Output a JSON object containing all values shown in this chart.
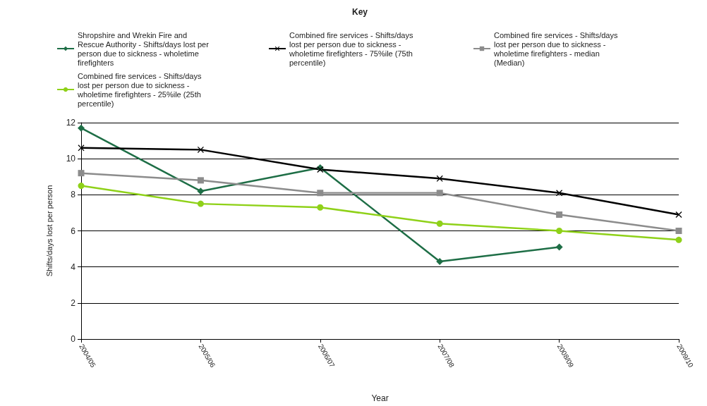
{
  "chart_data": {
    "type": "line",
    "legend_title": "Key",
    "xlabel": "Year",
    "ylabel": "Shifts/days lost per person",
    "categories": [
      "2004/05",
      "2005/06",
      "2006/07",
      "2007/08",
      "2008/09",
      "2009/10"
    ],
    "series": [
      {
        "name": "Shropshire and Wrekin Fire and Rescue Authority - Shifts/days lost per person due to sickness - wholetime firefighters",
        "color": "#1e6e46",
        "marker": "diamond",
        "values": [
          11.7,
          8.2,
          9.5,
          4.3,
          5.1,
          null
        ]
      },
      {
        "name": "Combined fire services - Shifts/days lost per person due to sickness - wholetime firefighters - 75%ile (75th percentile)",
        "color": "#000000",
        "marker": "cross",
        "values": [
          10.6,
          10.5,
          9.4,
          8.9,
          8.1,
          6.9
        ]
      },
      {
        "name": "Combined fire services - Shifts/days lost per person due to sickness - wholetime firefighters - median (Median)",
        "color": "#8c8c8c",
        "marker": "square",
        "values": [
          9.2,
          8.8,
          8.1,
          8.1,
          6.9,
          6.0
        ]
      },
      {
        "name": "Combined fire services - Shifts/days lost per person due to sickness - wholetime firefighters - 25%ile (25th percentile)",
        "color": "#8fd119",
        "marker": "circle",
        "values": [
          8.5,
          7.5,
          7.3,
          6.4,
          6.0,
          5.5
        ]
      }
    ],
    "ylim": [
      0,
      12
    ],
    "yticks": [
      0,
      2,
      4,
      6,
      8,
      10,
      12
    ],
    "grid": "y",
    "legend": "top",
    "line_style": "solid"
  }
}
